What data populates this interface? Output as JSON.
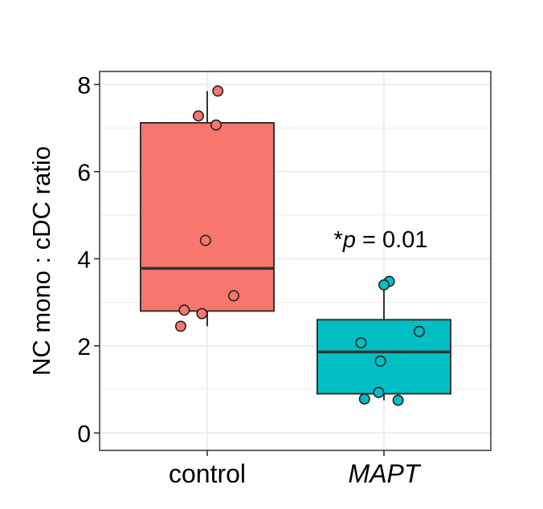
{
  "chart_data": {
    "type": "box",
    "categories": [
      "control",
      "MAPT"
    ],
    "ylabel": "NC mono : cDC ratio",
    "ylim": [
      -0.4,
      8.3
    ],
    "y_ticks": [
      0,
      2,
      4,
      6,
      8
    ],
    "grid": true,
    "legend": "none",
    "annotation": {
      "star": "*",
      "p_symbol": "p",
      "text": " = 0.01",
      "x_category": "MAPT",
      "y": 4.45
    },
    "boxes": [
      {
        "name": "control",
        "color": "#F8766D",
        "q1": 2.8,
        "median": 3.78,
        "q3": 7.12,
        "whisker_low": 2.45,
        "whisker_high": 7.85
      },
      {
        "name": "MAPT",
        "color": "#00BFC4",
        "q1": 0.9,
        "median": 1.86,
        "q3": 2.6,
        "whisker_low": 0.75,
        "whisker_high": 3.48
      }
    ],
    "points": [
      {
        "category": "control",
        "jitter": 0.06,
        "y": 7.85
      },
      {
        "category": "control",
        "jitter": -0.05,
        "y": 7.28
      },
      {
        "category": "control",
        "jitter": 0.05,
        "y": 7.07
      },
      {
        "category": "control",
        "jitter": -0.01,
        "y": 4.42
      },
      {
        "category": "control",
        "jitter": 0.15,
        "y": 3.15
      },
      {
        "category": "control",
        "jitter": -0.13,
        "y": 2.82
      },
      {
        "category": "control",
        "jitter": -0.03,
        "y": 2.74
      },
      {
        "category": "control",
        "jitter": -0.15,
        "y": 2.45
      },
      {
        "category": "MAPT",
        "jitter": 0.03,
        "y": 3.48
      },
      {
        "category": "MAPT",
        "jitter": 0.0,
        "y": 3.4
      },
      {
        "category": "MAPT",
        "jitter": 0.2,
        "y": 2.33
      },
      {
        "category": "MAPT",
        "jitter": -0.13,
        "y": 2.07
      },
      {
        "category": "MAPT",
        "jitter": -0.02,
        "y": 1.65
      },
      {
        "category": "MAPT",
        "jitter": -0.03,
        "y": 0.93
      },
      {
        "category": "MAPT",
        "jitter": -0.11,
        "y": 0.78
      },
      {
        "category": "MAPT",
        "jitter": 0.08,
        "y": 0.75
      }
    ]
  },
  "colors": {
    "grid": "#ebebeb",
    "box_outline": "#333333",
    "axis": "#333333",
    "point_outline": "#222222"
  }
}
